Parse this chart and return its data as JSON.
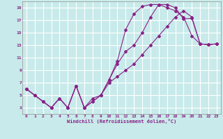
{
  "xlabel": "Windchill (Refroidissement éolien,°C)",
  "background_color": "#c8eaea",
  "grid_color": "#ffffff",
  "line_color": "#882288",
  "x_min": 0,
  "x_max": 23,
  "y_min": 2,
  "y_max": 20,
  "yticks": [
    3,
    5,
    7,
    9,
    11,
    13,
    15,
    17,
    19
  ],
  "xticks": [
    0,
    1,
    2,
    3,
    4,
    5,
    6,
    7,
    8,
    9,
    10,
    11,
    12,
    13,
    14,
    15,
    16,
    17,
    18,
    19,
    20,
    21,
    22,
    23
  ],
  "series": [
    {
      "x": [
        0,
        1,
        2,
        3,
        4,
        5,
        6,
        7,
        8,
        9,
        10,
        11,
        12,
        13,
        14,
        15,
        16,
        17,
        18,
        19,
        20,
        21,
        22,
        23
      ],
      "y": [
        6.0,
        5.0,
        4.0,
        3.0,
        4.5,
        3.0,
        6.5,
        3.0,
        4.5,
        5.0,
        7.5,
        10.5,
        15.5,
        18.0,
        19.2,
        19.5,
        19.5,
        19.0,
        18.5,
        17.5,
        14.5,
        13.2,
        13.1,
        13.2
      ]
    },
    {
      "x": [
        0,
        1,
        2,
        3,
        4,
        5,
        6,
        7,
        8,
        9,
        10,
        11,
        12,
        13,
        14,
        15,
        16,
        17,
        18,
        19,
        20,
        21,
        22,
        23
      ],
      "y": [
        6.0,
        5.0,
        4.0,
        3.0,
        4.5,
        3.0,
        6.5,
        3.0,
        4.0,
        5.0,
        7.0,
        8.0,
        9.0,
        10.0,
        11.5,
        13.0,
        14.5,
        16.0,
        17.5,
        18.5,
        17.5,
        13.2,
        13.1,
        13.2
      ]
    },
    {
      "x": [
        0,
        1,
        2,
        3,
        4,
        5,
        6,
        7,
        8,
        9,
        10,
        11,
        12,
        13,
        14,
        15,
        16,
        17,
        18,
        19,
        20,
        21,
        22,
        23
      ],
      "y": [
        6.0,
        5.0,
        4.0,
        3.0,
        4.5,
        3.0,
        6.5,
        3.0,
        4.0,
        5.0,
        7.5,
        10.0,
        12.0,
        13.0,
        15.0,
        17.5,
        19.5,
        19.5,
        19.0,
        17.2,
        17.3,
        13.2,
        13.1,
        13.2
      ]
    }
  ]
}
